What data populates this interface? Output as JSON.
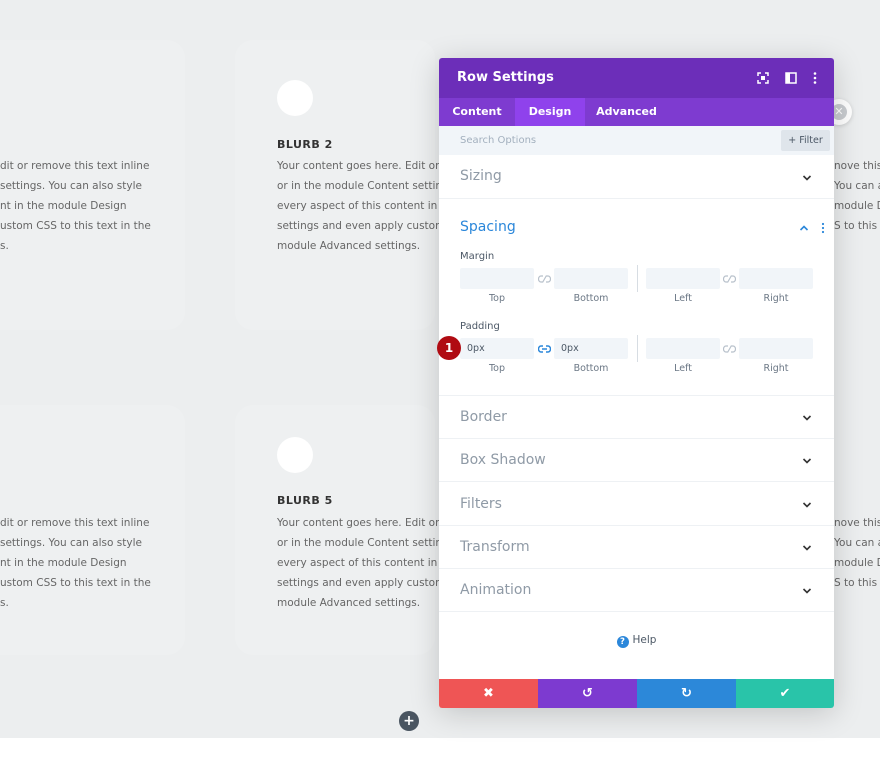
{
  "background": {
    "blurbs": [
      {
        "title": "BLURB 2",
        "lines": [
          "Your content goes here. Edit or rem",
          "or in the module Content settings.",
          "every aspect of this content in the r",
          "settings and even apply custom CS",
          "module Advanced settings."
        ]
      },
      {
        "title": "BLURB 5",
        "lines": [
          "Your content goes here. Edit or rem",
          "or in the module Content settings.",
          "every aspect of this content in the r",
          "settings and even apply custom CS",
          "module Advanced settings."
        ]
      }
    ],
    "left_fragments": [
      [
        "dit or remove this text inline",
        "settings. You can also style",
        "nt in the module Design",
        "ustom CSS to this text in the",
        "s."
      ],
      [
        "dit or remove this text inline",
        "settings. You can also style",
        "nt in the module Design",
        "ustom CSS to this text in the",
        "s."
      ]
    ],
    "right_fragments": [
      [
        "nove this t",
        "You can a",
        "module D",
        "S to this te"
      ],
      [
        "nove this t",
        "You can a",
        "module D",
        "S to this te"
      ]
    ],
    "add_button": "+"
  },
  "modal": {
    "title": "Row Settings",
    "tabs": [
      "Content",
      "Design",
      "Advanced"
    ],
    "active_tab": "Design",
    "search_placeholder": "Search Options",
    "filter_label": "Filter",
    "sections": {
      "sizing": "Sizing",
      "spacing": "Spacing",
      "border": "Border",
      "box_shadow": "Box Shadow",
      "filters": "Filters",
      "transform": "Transform",
      "animation": "Animation"
    },
    "spacing": {
      "margin_label": "Margin",
      "padding_label": "Padding",
      "captions": [
        "Top",
        "Bottom",
        "Left",
        "Right"
      ],
      "margin_values": [
        "",
        "",
        "",
        ""
      ],
      "padding_values": [
        "0px",
        "0px",
        "",
        ""
      ]
    },
    "help_label": "Help",
    "footer": {
      "cancel": "✖",
      "undo": "↺",
      "redo": "↻",
      "save": "✔"
    }
  },
  "step_badge": "1",
  "colors": {
    "header": "#6c2eb9",
    "tabs": "#7e3bd0",
    "active_tab": "#8f42ec",
    "accent": "#2b87da",
    "cancel": "#ef5555",
    "undo": "#7d3ad0",
    "redo": "#2c88d9",
    "save": "#29c4a9"
  }
}
